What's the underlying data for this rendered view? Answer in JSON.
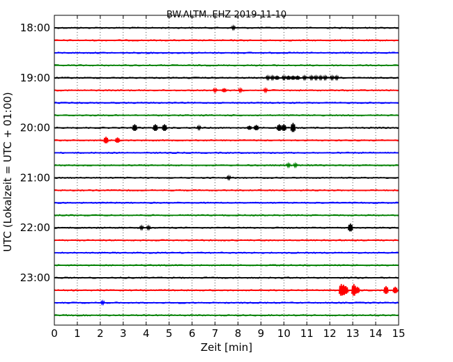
{
  "chart_data": {
    "type": "line",
    "title": "BW.ALTM..EHZ 2019-11-10",
    "xlabel": "Zeit  [min]",
    "ylabel": "UTC (Lokalzeit = UTC + 01:00)",
    "xlim": [
      0,
      15
    ],
    "x_ticks": [
      "0",
      "1",
      "2",
      "3",
      "4",
      "5",
      "6",
      "7",
      "8",
      "9",
      "10",
      "11",
      "12",
      "13",
      "14",
      "15"
    ],
    "y_tick_labels": [
      "18:00",
      "19:00",
      "20:00",
      "21:00",
      "22:00",
      "23:00"
    ],
    "grid": true,
    "trace_colors": [
      "#000000",
      "#ff0000",
      "#0000ff",
      "#008000"
    ],
    "series": [
      {
        "start": "18:00",
        "color": "#000000",
        "events": [
          {
            "t": 7.8,
            "amp": 2
          }
        ]
      },
      {
        "start": "18:15",
        "color": "#ff0000",
        "events": []
      },
      {
        "start": "18:30",
        "color": "#0000ff",
        "events": []
      },
      {
        "start": "18:45",
        "color": "#008000",
        "events": []
      },
      {
        "start": "19:00",
        "color": "#000000",
        "events": [
          {
            "t": 9.3,
            "amp": 2
          },
          {
            "t": 9.5,
            "amp": 2
          },
          {
            "t": 9.7,
            "amp": 3
          },
          {
            "t": 10.0,
            "amp": 2
          },
          {
            "t": 10.2,
            "amp": 3
          },
          {
            "t": 10.4,
            "amp": 3
          },
          {
            "t": 10.6,
            "amp": 3
          },
          {
            "t": 10.9,
            "amp": 2
          },
          {
            "t": 11.2,
            "amp": 2
          },
          {
            "t": 11.4,
            "amp": 2
          },
          {
            "t": 11.6,
            "amp": 2
          },
          {
            "t": 11.8,
            "amp": 2
          },
          {
            "t": 12.1,
            "amp": 2
          },
          {
            "t": 12.3,
            "amp": 2
          }
        ]
      },
      {
        "start": "19:15",
        "color": "#ff0000",
        "events": [
          {
            "t": 7.0,
            "amp": 2
          },
          {
            "t": 7.4,
            "amp": 3
          },
          {
            "t": 8.1,
            "amp": 2
          },
          {
            "t": 9.2,
            "amp": 2
          }
        ]
      },
      {
        "start": "19:30",
        "color": "#0000ff",
        "events": []
      },
      {
        "start": "19:45",
        "color": "#008000",
        "events": []
      },
      {
        "start": "20:00",
        "color": "#000000",
        "events": [
          {
            "t": 3.5,
            "amp": 5
          },
          {
            "t": 4.4,
            "amp": 5
          },
          {
            "t": 4.8,
            "amp": 5
          },
          {
            "t": 6.3,
            "amp": 2
          },
          {
            "t": 8.5,
            "amp": 3
          },
          {
            "t": 8.8,
            "amp": 4
          },
          {
            "t": 9.8,
            "amp": 5
          },
          {
            "t": 10.0,
            "amp": 5
          },
          {
            "t": 10.4,
            "amp": 7
          }
        ]
      },
      {
        "start": "20:15",
        "color": "#ff0000",
        "events": [
          {
            "t": 2.25,
            "amp": 5
          },
          {
            "t": 2.75,
            "amp": 4
          }
        ]
      },
      {
        "start": "20:30",
        "color": "#0000ff",
        "events": []
      },
      {
        "start": "20:45",
        "color": "#008000",
        "events": [
          {
            "t": 10.2,
            "amp": 2
          },
          {
            "t": 10.5,
            "amp": 2
          }
        ]
      },
      {
        "start": "21:00",
        "color": "#000000",
        "events": [
          {
            "t": 7.6,
            "amp": 2
          }
        ]
      },
      {
        "start": "21:15",
        "color": "#ff0000",
        "events": []
      },
      {
        "start": "21:30",
        "color": "#0000ff",
        "events": []
      },
      {
        "start": "21:45",
        "color": "#008000",
        "events": []
      },
      {
        "start": "22:00",
        "color": "#000000",
        "events": [
          {
            "t": 3.8,
            "amp": 2
          },
          {
            "t": 4.1,
            "amp": 2
          },
          {
            "t": 12.9,
            "amp": 6
          }
        ]
      },
      {
        "start": "22:15",
        "color": "#ff0000",
        "events": []
      },
      {
        "start": "22:30",
        "color": "#0000ff",
        "events": []
      },
      {
        "start": "22:45",
        "color": "#008000",
        "events": []
      },
      {
        "start": "23:00",
        "color": "#000000",
        "events": []
      },
      {
        "start": "23:15",
        "color": "#ff0000",
        "events": [
          {
            "t": 12.5,
            "amp": 9
          },
          {
            "t": 12.6,
            "amp": 8
          },
          {
            "t": 12.7,
            "amp": 6
          },
          {
            "t": 13.05,
            "amp": 9
          },
          {
            "t": 13.2,
            "amp": 5
          },
          {
            "t": 14.45,
            "amp": 6
          },
          {
            "t": 14.85,
            "amp": 5
          }
        ]
      },
      {
        "start": "23:30",
        "color": "#0000ff",
        "events": [
          {
            "t": 2.1,
            "amp": 2
          }
        ]
      },
      {
        "start": "23:45",
        "color": "#008000",
        "events": []
      }
    ]
  }
}
